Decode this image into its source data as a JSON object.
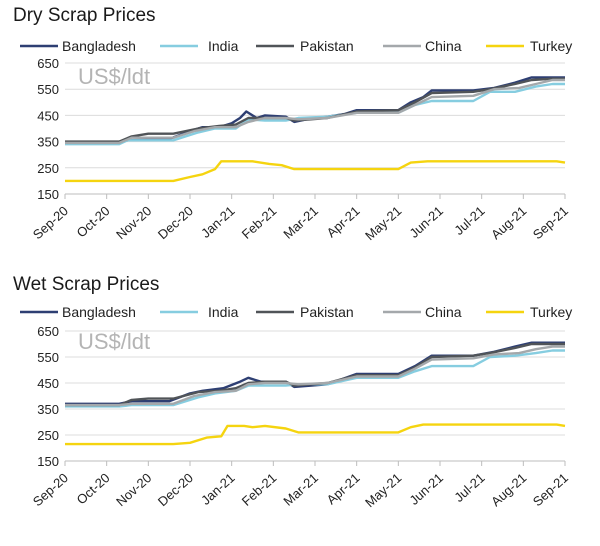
{
  "charts": [
    {
      "title": "Dry Scrap Prices",
      "unit_label": "US$/ldt",
      "chart_data": {
        "type": "line",
        "title": "Dry Scrap Prices",
        "xlabel": "",
        "ylabel": "",
        "x_ticks": [
          "Sep-20",
          "Oct-20",
          "Nov-20",
          "Dec-20",
          "Jan-21",
          "Feb-21",
          "Mar-21",
          "Apr-21",
          "May-21",
          "Jun-21",
          "Jul-21",
          "Aug-21",
          "Sep-21"
        ],
        "y_ticks": [
          "650",
          "550",
          "450",
          "350",
          "250",
          "150"
        ],
        "ylim": [
          150,
          650
        ],
        "grid": "horizontal",
        "legend": "top",
        "series": [
          {
            "name": "Bangladesh",
            "color": "#2e3f73",
            "points": [
              [
                0,
                345
              ],
              [
                1.3,
                345
              ],
              [
                1.5,
                355
              ],
              [
                2.5,
                360
              ],
              [
                3.0,
                390
              ],
              [
                3.3,
                405
              ],
              [
                3.7,
                405
              ],
              [
                4.0,
                420
              ],
              [
                4.2,
                440
              ],
              [
                4.35,
                465
              ],
              [
                4.6,
                440
              ],
              [
                4.8,
                450
              ],
              [
                5.3,
                445
              ],
              [
                5.5,
                425
              ],
              [
                5.8,
                435
              ],
              [
                6.3,
                445
              ],
              [
                6.7,
                455
              ],
              [
                7.0,
                470
              ],
              [
                8.0,
                470
              ],
              [
                8.3,
                500
              ],
              [
                8.6,
                520
              ],
              [
                8.8,
                545
              ],
              [
                9.0,
                545
              ],
              [
                9.8,
                545
              ],
              [
                10.3,
                555
              ],
              [
                10.8,
                575
              ],
              [
                11.2,
                595
              ],
              [
                12.0,
                595
              ]
            ]
          },
          {
            "name": "India",
            "color": "#86cde0",
            "points": [
              [
                0,
                340
              ],
              [
                1.3,
                340
              ],
              [
                1.5,
                355
              ],
              [
                2.6,
                355
              ],
              [
                3.2,
                385
              ],
              [
                3.6,
                400
              ],
              [
                4.1,
                400
              ],
              [
                4.4,
                435
              ],
              [
                4.8,
                430
              ],
              [
                5.3,
                430
              ],
              [
                5.6,
                440
              ],
              [
                6.3,
                445
              ],
              [
                7.0,
                460
              ],
              [
                8.0,
                460
              ],
              [
                8.4,
                490
              ],
              [
                8.8,
                505
              ],
              [
                9.8,
                505
              ],
              [
                10.2,
                540
              ],
              [
                10.8,
                540
              ],
              [
                11.3,
                560
              ],
              [
                11.7,
                570
              ],
              [
                12.0,
                570
              ]
            ]
          },
          {
            "name": "Pakistan",
            "color": "#505458",
            "points": [
              [
                0,
                350
              ],
              [
                1.3,
                350
              ],
              [
                1.6,
                370
              ],
              [
                2.0,
                380
              ],
              [
                2.6,
                380
              ],
              [
                3.2,
                400
              ],
              [
                3.7,
                410
              ],
              [
                4.1,
                415
              ],
              [
                4.4,
                440
              ],
              [
                4.8,
                440
              ],
              [
                5.3,
                440
              ],
              [
                5.5,
                430
              ],
              [
                6.3,
                440
              ],
              [
                7.0,
                465
              ],
              [
                8.0,
                470
              ],
              [
                8.4,
                500
              ],
              [
                8.8,
                535
              ],
              [
                9.8,
                540
              ],
              [
                10.2,
                550
              ],
              [
                10.8,
                570
              ],
              [
                11.2,
                585
              ],
              [
                11.7,
                590
              ],
              [
                12.0,
                590
              ]
            ]
          },
          {
            "name": "China",
            "color": "#a4a8ab",
            "points": [
              [
                0,
                345
              ],
              [
                1.3,
                345
              ],
              [
                1.6,
                365
              ],
              [
                2.6,
                365
              ],
              [
                3.1,
                390
              ],
              [
                3.6,
                405
              ],
              [
                4.1,
                405
              ],
              [
                4.4,
                425
              ],
              [
                4.8,
                440
              ],
              [
                5.3,
                440
              ],
              [
                5.6,
                435
              ],
              [
                6.3,
                440
              ],
              [
                7.0,
                460
              ],
              [
                8.0,
                460
              ],
              [
                8.4,
                490
              ],
              [
                8.8,
                520
              ],
              [
                9.8,
                525
              ],
              [
                10.3,
                550
              ],
              [
                10.9,
                555
              ],
              [
                11.3,
                570
              ],
              [
                11.7,
                585
              ],
              [
                12.0,
                585
              ]
            ]
          },
          {
            "name": "Turkey",
            "color": "#f5d40f",
            "points": [
              [
                0,
                200
              ],
              [
                2.6,
                200
              ],
              [
                3.0,
                215
              ],
              [
                3.3,
                225
              ],
              [
                3.6,
                245
              ],
              [
                3.75,
                275
              ],
              [
                4.5,
                275
              ],
              [
                4.9,
                265
              ],
              [
                5.2,
                260
              ],
              [
                5.5,
                245
              ],
              [
                8.0,
                245
              ],
              [
                8.3,
                270
              ],
              [
                8.7,
                275
              ],
              [
                11.8,
                275
              ],
              [
                12.0,
                270
              ]
            ]
          }
        ]
      }
    },
    {
      "title": "Wet Scrap Prices",
      "unit_label": "US$/ldt",
      "chart_data": {
        "type": "line",
        "title": "Wet Scrap Prices",
        "xlabel": "",
        "ylabel": "",
        "x_ticks": [
          "Sep-20",
          "Oct-20",
          "Nov-20",
          "Dec-20",
          "Jan-21",
          "Feb-21",
          "Mar-21",
          "Apr-21",
          "May-21",
          "Jun-21",
          "Jul-21",
          "Aug-21",
          "Sep-21"
        ],
        "y_ticks": [
          "650",
          "550",
          "450",
          "350",
          "250",
          "150"
        ],
        "ylim": [
          150,
          650
        ],
        "grid": "horizontal",
        "legend": "top",
        "series": [
          {
            "name": "Bangladesh",
            "color": "#2e3f73",
            "points": [
              [
                0,
                370
              ],
              [
                1.3,
                370
              ],
              [
                1.6,
                380
              ],
              [
                2.5,
                380
              ],
              [
                3.0,
                410
              ],
              [
                3.3,
                420
              ],
              [
                3.8,
                430
              ],
              [
                4.2,
                455
              ],
              [
                4.4,
                470
              ],
              [
                4.7,
                455
              ],
              [
                5.3,
                455
              ],
              [
                5.5,
                435
              ],
              [
                6.3,
                445
              ],
              [
                7.0,
                485
              ],
              [
                8.0,
                485
              ],
              [
                8.4,
                515
              ],
              [
                8.8,
                555
              ],
              [
                9.8,
                555
              ],
              [
                10.3,
                570
              ],
              [
                10.8,
                590
              ],
              [
                11.2,
                605
              ],
              [
                12.0,
                605
              ]
            ]
          },
          {
            "name": "India",
            "color": "#86cde0",
            "points": [
              [
                0,
                360
              ],
              [
                1.3,
                360
              ],
              [
                1.6,
                365
              ],
              [
                2.6,
                365
              ],
              [
                3.2,
                395
              ],
              [
                3.6,
                410
              ],
              [
                4.1,
                420
              ],
              [
                4.4,
                440
              ],
              [
                4.8,
                440
              ],
              [
                5.3,
                440
              ],
              [
                5.6,
                445
              ],
              [
                6.3,
                445
              ],
              [
                7.0,
                470
              ],
              [
                8.0,
                470
              ],
              [
                8.4,
                495
              ],
              [
                8.8,
                515
              ],
              [
                9.8,
                515
              ],
              [
                10.2,
                550
              ],
              [
                10.8,
                555
              ],
              [
                11.3,
                565
              ],
              [
                11.7,
                575
              ],
              [
                12.0,
                575
              ]
            ]
          },
          {
            "name": "Pakistan",
            "color": "#505458",
            "points": [
              [
                0,
                365
              ],
              [
                1.3,
                365
              ],
              [
                1.6,
                385
              ],
              [
                2.0,
                390
              ],
              [
                2.6,
                390
              ],
              [
                3.2,
                415
              ],
              [
                3.7,
                420
              ],
              [
                4.1,
                430
              ],
              [
                4.4,
                450
              ],
              [
                4.8,
                455
              ],
              [
                5.3,
                455
              ],
              [
                5.5,
                440
              ],
              [
                6.3,
                450
              ],
              [
                7.0,
                480
              ],
              [
                8.0,
                480
              ],
              [
                8.4,
                510
              ],
              [
                8.8,
                550
              ],
              [
                9.8,
                555
              ],
              [
                10.2,
                565
              ],
              [
                10.8,
                585
              ],
              [
                11.2,
                600
              ],
              [
                11.7,
                600
              ],
              [
                12.0,
                600
              ]
            ]
          },
          {
            "name": "China",
            "color": "#a4a8ab",
            "points": [
              [
                0,
                365
              ],
              [
                1.3,
                365
              ],
              [
                1.6,
                370
              ],
              [
                2.6,
                370
              ],
              [
                3.1,
                400
              ],
              [
                3.6,
                415
              ],
              [
                4.1,
                420
              ],
              [
                4.4,
                445
              ],
              [
                4.8,
                450
              ],
              [
                5.3,
                450
              ],
              [
                5.6,
                445
              ],
              [
                6.3,
                450
              ],
              [
                7.0,
                475
              ],
              [
                8.0,
                475
              ],
              [
                8.4,
                505
              ],
              [
                8.8,
                540
              ],
              [
                9.8,
                545
              ],
              [
                10.3,
                560
              ],
              [
                10.9,
                565
              ],
              [
                11.3,
                580
              ],
              [
                11.7,
                590
              ],
              [
                12.0,
                590
              ]
            ]
          },
          {
            "name": "Turkey",
            "color": "#f5d40f",
            "points": [
              [
                0,
                215
              ],
              [
                2.6,
                215
              ],
              [
                3.0,
                220
              ],
              [
                3.4,
                240
              ],
              [
                3.75,
                245
              ],
              [
                3.9,
                285
              ],
              [
                4.3,
                285
              ],
              [
                4.5,
                280
              ],
              [
                4.8,
                285
              ],
              [
                5.3,
                275
              ],
              [
                5.6,
                260
              ],
              [
                8.0,
                260
              ],
              [
                8.3,
                280
              ],
              [
                8.6,
                290
              ],
              [
                11.8,
                290
              ],
              [
                12.0,
                285
              ]
            ]
          }
        ]
      }
    }
  ]
}
